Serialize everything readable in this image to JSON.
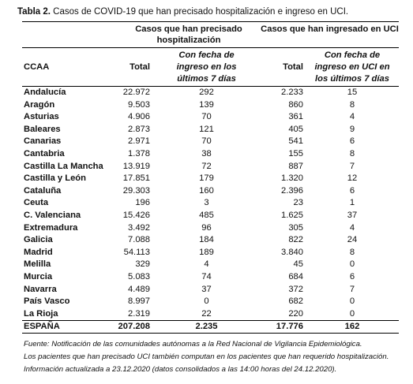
{
  "title": {
    "label": "Tabla 2.",
    "text": "Casos de COVID-19 que han precisado hospitalización e ingreso en UCI."
  },
  "table": {
    "group_headers": [
      "Casos que han precisado hospitalización",
      "Casos que han ingresado en UCI"
    ],
    "columns": [
      "CCAA",
      "Total",
      "Con fecha de ingreso en los últimos 7 días",
      "Total",
      "Con fecha de ingreso en UCI en los últimos 7 días"
    ],
    "rows": [
      [
        "Andalucía",
        "22.972",
        "292",
        "2.233",
        "15"
      ],
      [
        "Aragón",
        "9.503",
        "139",
        "860",
        "8"
      ],
      [
        "Asturias",
        "4.906",
        "70",
        "361",
        "4"
      ],
      [
        "Baleares",
        "2.873",
        "121",
        "405",
        "9"
      ],
      [
        "Canarias",
        "2.971",
        "70",
        "541",
        "6"
      ],
      [
        "Cantabria",
        "1.378",
        "38",
        "155",
        "8"
      ],
      [
        "Castilla La Mancha",
        "13.919",
        "72",
        "887",
        "7"
      ],
      [
        "Castilla y León",
        "17.851",
        "179",
        "1.320",
        "12"
      ],
      [
        "Cataluña",
        "29.303",
        "160",
        "2.396",
        "6"
      ],
      [
        "Ceuta",
        "196",
        "3",
        "23",
        "1"
      ],
      [
        "C. Valenciana",
        "15.426",
        "485",
        "1.625",
        "37"
      ],
      [
        "Extremadura",
        "3.492",
        "96",
        "305",
        "4"
      ],
      [
        "Galicia",
        "7.088",
        "184",
        "822",
        "24"
      ],
      [
        "Madrid",
        "54.113",
        "189",
        "3.840",
        "8"
      ],
      [
        "Melilla",
        "329",
        "4",
        "45",
        "0"
      ],
      [
        "Murcia",
        "5.083",
        "74",
        "684",
        "6"
      ],
      [
        "Navarra",
        "4.489",
        "37",
        "372",
        "7"
      ],
      [
        "País Vasco",
        "8.997",
        "0",
        "682",
        "0"
      ],
      [
        "La Rioja",
        "2.319",
        "22",
        "220",
        "0"
      ]
    ],
    "total_row": [
      "ESPAÑA",
      "207.208",
      "2.235",
      "17.776",
      "162"
    ]
  },
  "footnotes": [
    "Fuente: Notificación de las comunidades autónomas a la Red Nacional de Vigilancia Epidemiológica.",
    "Los pacientes que han precisado UCI también computan en los pacientes que han requerido hospitalización.",
    "Información actualizada a 23.12.2020 (datos consolidados a las 14:00 horas del 24.12.2020)."
  ]
}
